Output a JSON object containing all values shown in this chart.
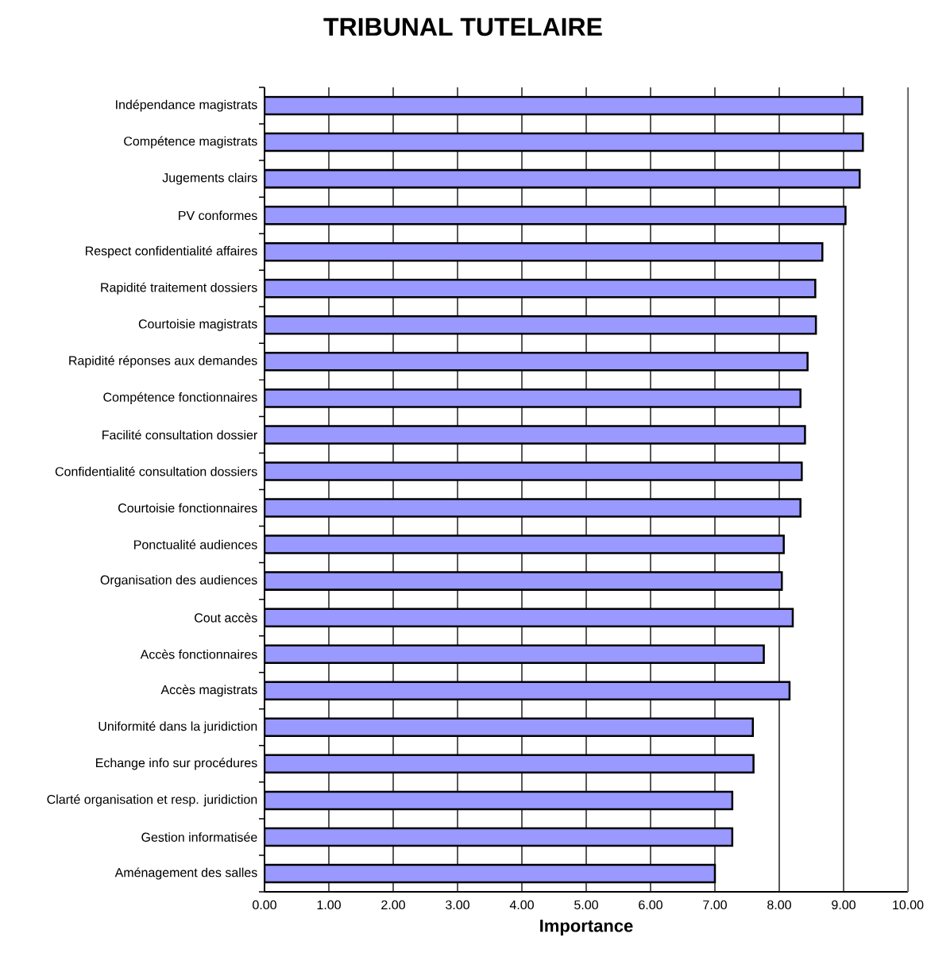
{
  "chart_data": {
    "type": "bar",
    "orientation": "horizontal",
    "title": "TRIBUNAL TUTELAIRE",
    "xlabel": "Importance",
    "categories": [
      "Indépendance magistrats",
      "Compétence magistrats",
      "Jugements clairs",
      "PV conformes",
      "Respect confidentialité affaires",
      "Rapidité traitement dossiers",
      "Courtoisie magistrats",
      "Rapidité réponses aux demandes",
      "Compétence fonctionnaires",
      "Facilité consultation dossier",
      "Confidentialité consultation dossiers",
      "Courtoisie fonctionnaires",
      "Ponctualité audiences",
      "Organisation des audiences",
      "Cout accès",
      "Accès fonctionnaires",
      "Accès magistrats",
      "Uniformité dans la juridiction",
      "Echange info sur procédures",
      "Clarté organisation et resp. juridiction",
      "Gestion informatisée",
      "Aménagement des salles"
    ],
    "values": [
      9.29,
      9.3,
      9.25,
      9.03,
      8.67,
      8.56,
      8.57,
      8.44,
      8.33,
      8.4,
      8.35,
      8.33,
      8.07,
      8.04,
      8.21,
      7.76,
      8.16,
      7.59,
      7.6,
      7.27,
      7.27,
      7.0
    ],
    "color": "#9999ff",
    "xlim": [
      0,
      10
    ],
    "xticks": [
      {
        "value": 0,
        "label": "0.00"
      },
      {
        "value": 1,
        "label": "1.00"
      },
      {
        "value": 2,
        "label": "2.00"
      },
      {
        "value": 3,
        "label": "3.00"
      },
      {
        "value": 4,
        "label": "4.00"
      },
      {
        "value": 5,
        "label": "5.00"
      },
      {
        "value": 6,
        "label": "6.00"
      },
      {
        "value": 7,
        "label": "7.00"
      },
      {
        "value": 8,
        "label": "8.00"
      },
      {
        "value": 9,
        "label": "9.00"
      },
      {
        "value": 10,
        "label": "10.00"
      }
    ],
    "grid": "x"
  }
}
